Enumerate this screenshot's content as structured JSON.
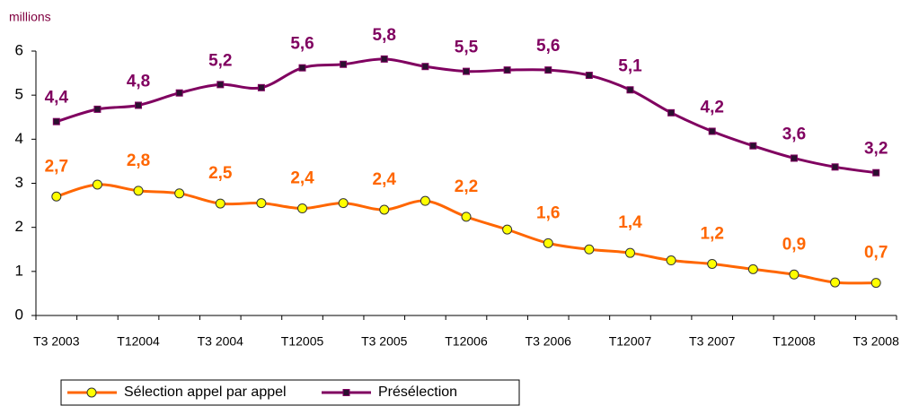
{
  "chart_data": {
    "type": "line",
    "y_label": "millions",
    "categories": [
      "T3 2003",
      null,
      "T12004",
      null,
      "T3 2004",
      null,
      "T12005",
      null,
      "T3 2005",
      null,
      "T12006",
      null,
      "T3 2006",
      null,
      "T12007",
      null,
      "T3 2007",
      null,
      "T12008",
      null,
      "T3 2008"
    ],
    "series": [
      {
        "name": "Sélection appel par appel",
        "color": "#ff6600",
        "marker_color": "#ffff00",
        "values": [
          2.7,
          2.97,
          2.83,
          2.77,
          2.54,
          2.55,
          2.43,
          2.55,
          2.4,
          2.6,
          2.24,
          1.95,
          1.64,
          1.5,
          1.42,
          1.25,
          1.17,
          1.05,
          0.93,
          0.75,
          0.74
        ],
        "value_labels": [
          "2,7",
          null,
          "2,8",
          null,
          "2,5",
          null,
          "2,4",
          null,
          "2,4",
          null,
          "2,2",
          null,
          "1,6",
          null,
          "1,4",
          null,
          "1,2",
          null,
          "0,9",
          null,
          "0,7"
        ]
      },
      {
        "name": "Présélection",
        "color": "#800060",
        "marker_color": "#2b1030",
        "values": [
          4.4,
          4.68,
          4.77,
          5.05,
          5.24,
          5.17,
          5.62,
          5.7,
          5.82,
          5.65,
          5.54,
          5.57,
          5.57,
          5.45,
          5.12,
          4.6,
          4.18,
          3.85,
          3.57,
          3.37,
          3.24
        ],
        "value_labels": [
          "4,4",
          null,
          "4,8",
          null,
          "5,2",
          null,
          "5,6",
          null,
          "5,8",
          null,
          "5,5",
          null,
          "5,6",
          null,
          "5,1",
          null,
          "4,2",
          null,
          "3,6",
          null,
          "3,2"
        ]
      }
    ],
    "ylim": [
      0,
      6
    ],
    "yticks": [
      0,
      1,
      2,
      3,
      4,
      5,
      6
    ],
    "grid": false,
    "legend": "bottom-left"
  }
}
